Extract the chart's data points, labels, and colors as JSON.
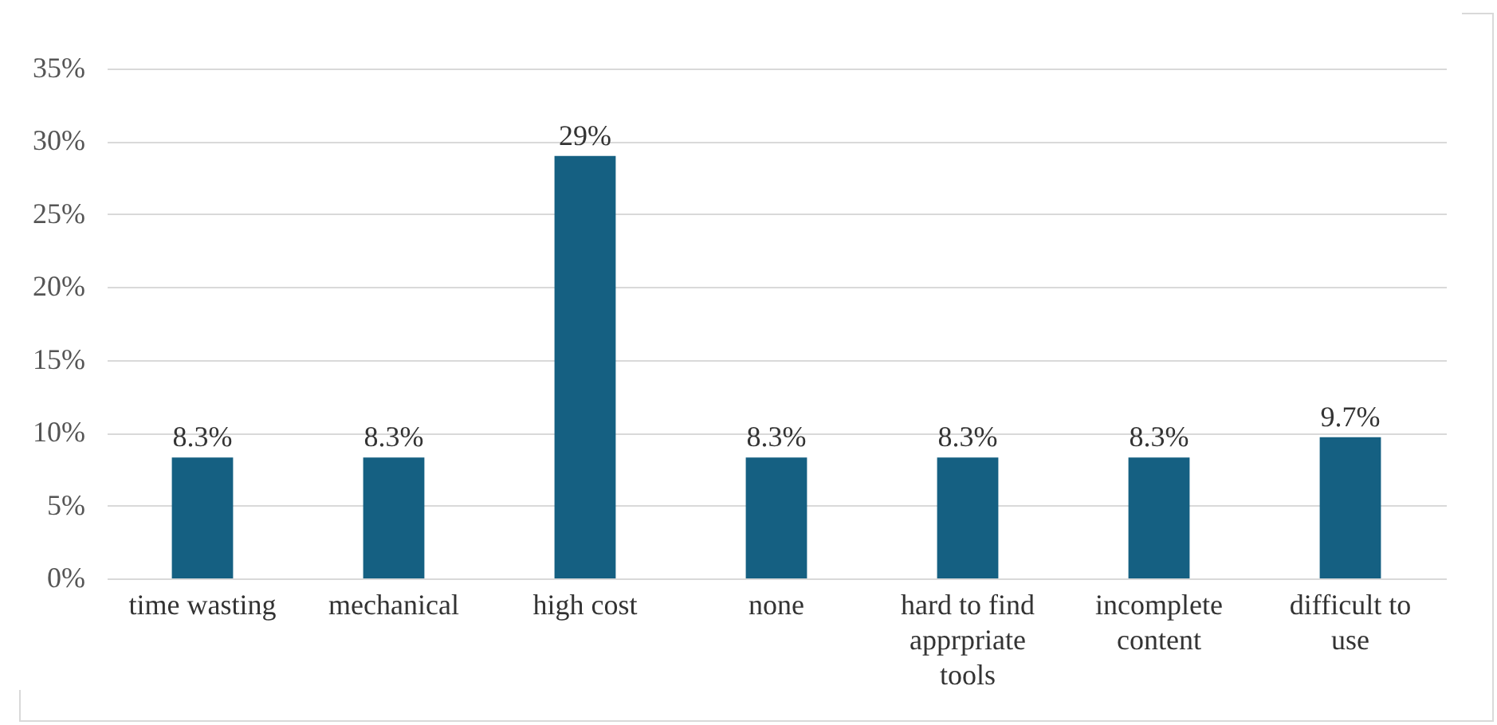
{
  "chart_data": {
    "type": "bar",
    "categories": [
      "time wasting",
      "mechanical",
      "high cost",
      "none",
      "hard to find apprpriate tools",
      "incomplete content",
      "difficult to use"
    ],
    "values": [
      8.3,
      8.3,
      29,
      8.3,
      8.3,
      8.3,
      9.7
    ],
    "value_labels": [
      "8.3%",
      "8.3%",
      "29%",
      "8.3%",
      "8.3%",
      "8.3%",
      "9.7%"
    ],
    "color": "#156082",
    "ylim": [
      0,
      35
    ],
    "yticks": [
      {
        "value": 0,
        "label": "0%"
      },
      {
        "value": 5,
        "label": "5%"
      },
      {
        "value": 10,
        "label": "10%"
      },
      {
        "value": 15,
        "label": "15%"
      },
      {
        "value": 20,
        "label": "20%"
      },
      {
        "value": 25,
        "label": "25%"
      },
      {
        "value": 30,
        "label": "30%"
      },
      {
        "value": 35,
        "label": "35%"
      }
    ],
    "grid": "y"
  }
}
